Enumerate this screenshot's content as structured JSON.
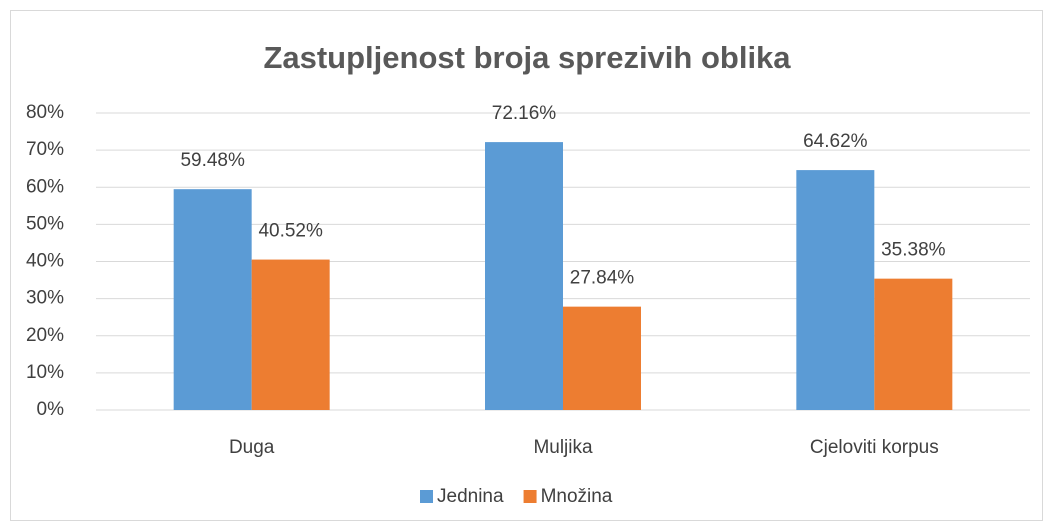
{
  "chart_data": {
    "type": "bar",
    "title": "Zastupljenost broja sprezivih oblika",
    "categories": [
      "Duga",
      "Muljika",
      "Cjeloviti korpus"
    ],
    "series": [
      {
        "name": "Jednina",
        "color": "#5b9bd5",
        "values": [
          59.48,
          72.16,
          64.62
        ],
        "value_labels": [
          "59.48%",
          "72.16%",
          "64.62%"
        ]
      },
      {
        "name": "Množina",
        "color": "#ed7d31",
        "values": [
          40.52,
          27.84,
          35.38
        ],
        "value_labels": [
          "40.52%",
          "27.84%",
          "35.38%"
        ]
      }
    ],
    "ylim": [
      0,
      80
    ],
    "yticks": [
      {
        "value": 0,
        "label": "0%"
      },
      {
        "value": 10,
        "label": "10%"
      },
      {
        "value": 20,
        "label": "20%"
      },
      {
        "value": 30,
        "label": "30%"
      },
      {
        "value": 40,
        "label": "40%"
      },
      {
        "value": 50,
        "label": "50%"
      },
      {
        "value": 60,
        "label": "60%"
      },
      {
        "value": 70,
        "label": "70%"
      },
      {
        "value": 80,
        "label": "80%"
      }
    ],
    "grid": true,
    "legend": "bottom"
  }
}
